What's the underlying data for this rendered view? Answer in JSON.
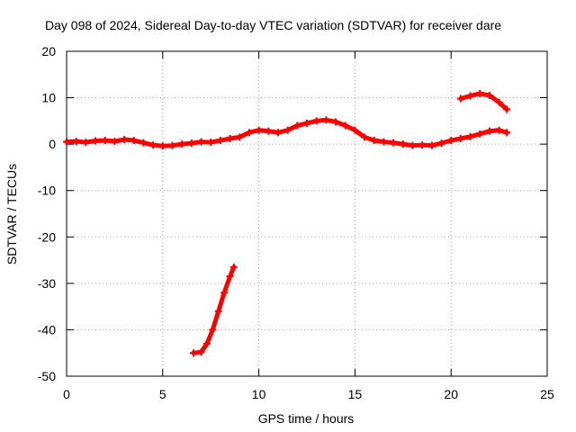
{
  "chart_data": {
    "type": "scatter",
    "title": "Day 098 of 2024, Sidereal Day-to-day VTEC variation (SDTVAR) for receiver dare",
    "xlabel": "GPS time / hours",
    "ylabel": "SDTVAR / TECUs",
    "xlim": [
      0,
      25
    ],
    "ylim": [
      -50,
      20
    ],
    "xticks": [
      0,
      5,
      10,
      15,
      20,
      25
    ],
    "yticks": [
      -50,
      -40,
      -30,
      -20,
      -10,
      0,
      10,
      20
    ],
    "grid": true,
    "marker": "plus",
    "color": "#ff0000",
    "series": [
      {
        "name": "main",
        "x": [
          0.0,
          0.5,
          1.0,
          1.5,
          2.0,
          2.5,
          3.0,
          3.5,
          4.0,
          4.5,
          5.0,
          5.5,
          6.0,
          6.5,
          7.0,
          7.5,
          8.0,
          8.5,
          9.0,
          9.5,
          10.0,
          10.5,
          11.0,
          11.5,
          12.0,
          12.5,
          13.0,
          13.5,
          14.0,
          14.5,
          15.0,
          15.5,
          16.0,
          16.5,
          17.0,
          17.5,
          18.0,
          18.5,
          19.0,
          19.5,
          20.0,
          20.5,
          21.0,
          21.5,
          22.0,
          22.5,
          22.9
        ],
        "y": [
          0.5,
          0.6,
          0.4,
          0.7,
          0.8,
          0.6,
          1.0,
          0.8,
          0.3,
          -0.2,
          -0.4,
          -0.3,
          0.0,
          0.2,
          0.5,
          0.4,
          0.8,
          1.2,
          1.5,
          2.5,
          3.0,
          2.8,
          2.5,
          3.0,
          4.0,
          4.5,
          5.0,
          5.2,
          4.8,
          4.0,
          3.0,
          1.5,
          0.8,
          0.5,
          0.3,
          0.0,
          -0.3,
          -0.2,
          -0.3,
          0.2,
          0.8,
          1.2,
          1.6,
          2.2,
          2.8,
          3.0,
          2.5
        ]
      },
      {
        "name": "upper-segment",
        "x": [
          20.5,
          21.0,
          21.5,
          22.0,
          22.5,
          22.9
        ],
        "y": [
          9.8,
          10.4,
          10.9,
          10.5,
          9.0,
          7.5
        ]
      },
      {
        "name": "drop-segment",
        "x": [
          6.6,
          7.0,
          7.3,
          7.6,
          7.9,
          8.2,
          8.5,
          8.7
        ],
        "y": [
          -45.0,
          -44.8,
          -43.0,
          -40.0,
          -36.0,
          -32.0,
          -28.5,
          -26.5
        ]
      }
    ]
  }
}
